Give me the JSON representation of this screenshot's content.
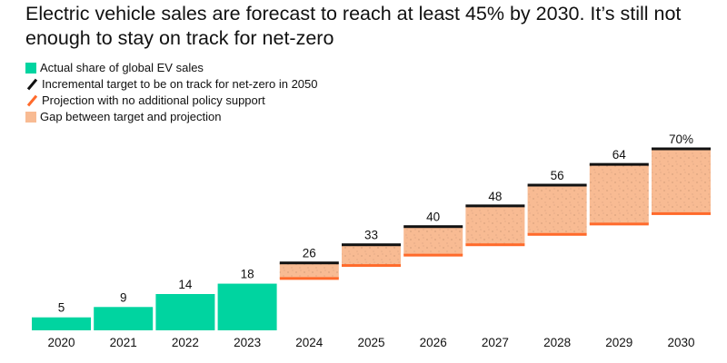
{
  "title": "Electric vehicle sales are forecast to reach at least 45% by 2030. It’s still not enough to stay on track for net-zero",
  "legend": [
    {
      "label": "Actual share of global EV sales",
      "color": "#00d4a0",
      "kind": "square"
    },
    {
      "label": "Incremental target to be on track for net-zero in 2050",
      "color": "#111111",
      "kind": "slash"
    },
    {
      "label": "Projection with no additional policy support",
      "color": "#ff6a2b",
      "kind": "slash"
    },
    {
      "label": "Gap between target and projection",
      "color": "#f8bb93",
      "kind": "square"
    }
  ],
  "chart_data": {
    "type": "bar",
    "title": "Electric vehicle sales are forecast to reach at least 45% by 2030. It’s still not enough to stay on track for net-zero",
    "categories": [
      "2020",
      "2021",
      "2022",
      "2023",
      "2024",
      "2025",
      "2026",
      "2027",
      "2028",
      "2029",
      "2030"
    ],
    "series": [
      {
        "name": "Actual share of global EV sales",
        "values": [
          5,
          9,
          14,
          18,
          null,
          null,
          null,
          null,
          null,
          null,
          null
        ]
      },
      {
        "name": "Incremental target to be on track for net-zero in 2050",
        "values": [
          null,
          null,
          null,
          null,
          26,
          33,
          40,
          48,
          56,
          64,
          70
        ]
      },
      {
        "name": "Projection with no additional policy support",
        "values": [
          null,
          null,
          null,
          null,
          20,
          25,
          29,
          33,
          37,
          41,
          45
        ]
      }
    ],
    "data_labels": [
      "5",
      "9",
      "14",
      "18",
      "26",
      "33",
      "40",
      "48",
      "56",
      "64",
      "70%"
    ],
    "xlabel": "",
    "ylabel": "",
    "ylim": [
      0,
      70
    ],
    "unit": "%",
    "grid": false,
    "legend_position": "top-left"
  }
}
